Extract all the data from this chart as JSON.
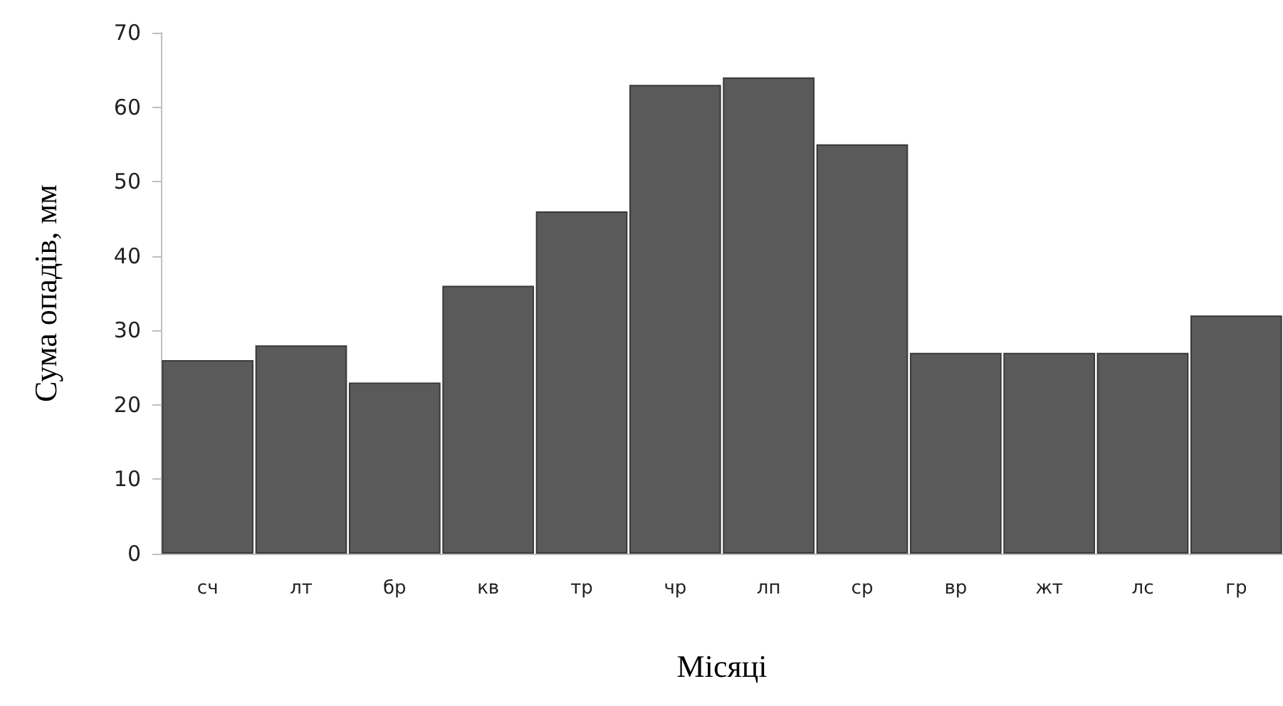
{
  "chart_data": {
    "type": "bar",
    "xlabel": "Місяці",
    "ylabel": "Сума опадів, мм",
    "categories": [
      "сч",
      "лт",
      "бр",
      "кв",
      "тр",
      "чр",
      "лп",
      "ср",
      "вр",
      "жт",
      "лс",
      "гр"
    ],
    "values": [
      26,
      28,
      23,
      36,
      46,
      63,
      64,
      55,
      27,
      27,
      27,
      32
    ],
    "color": "#5a5a5a",
    "ylim": [
      0,
      70
    ],
    "yticks": [
      0,
      10,
      20,
      30,
      40,
      50,
      60,
      70
    ],
    "grid": false
  }
}
